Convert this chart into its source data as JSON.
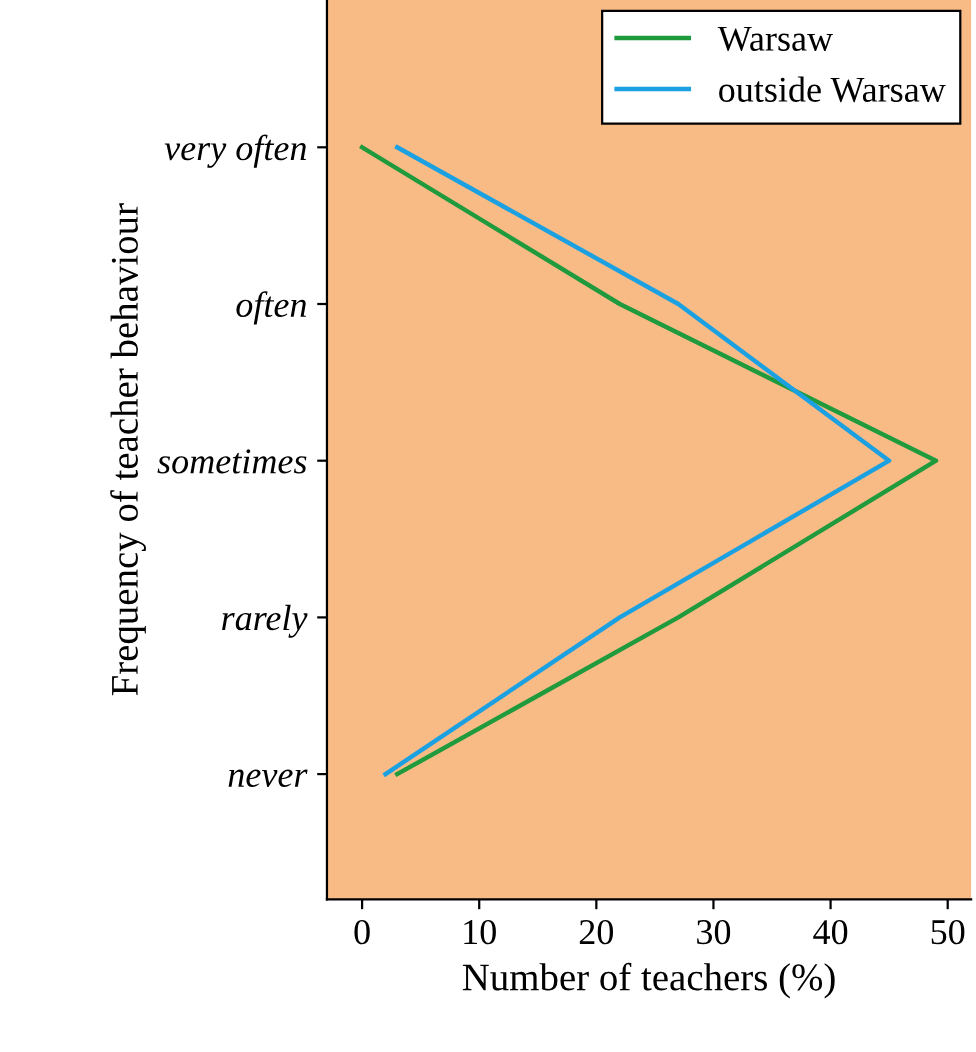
{
  "chart_data": {
    "type": "line",
    "orientation": "horizontal",
    "xlabel": "Number of teachers (%)",
    "ylabel": "Frequency of teacher behaviour",
    "categories": [
      "very often",
      "often",
      "sometimes",
      "rarely",
      "never"
    ],
    "series": [
      {
        "name": "Warsaw",
        "color": "#1f9a3c",
        "values": [
          0,
          22,
          49,
          27,
          3
        ]
      },
      {
        "name": "outside Warsaw",
        "color": "#1ba1e2",
        "values": [
          3,
          27,
          45,
          22,
          2
        ]
      }
    ],
    "xlim": [
      -3,
      52
    ],
    "xticks": [
      0,
      10,
      20,
      30,
      40,
      50
    ],
    "legend": "top right",
    "grid": false,
    "marker": "none",
    "line_style": "solid"
  }
}
